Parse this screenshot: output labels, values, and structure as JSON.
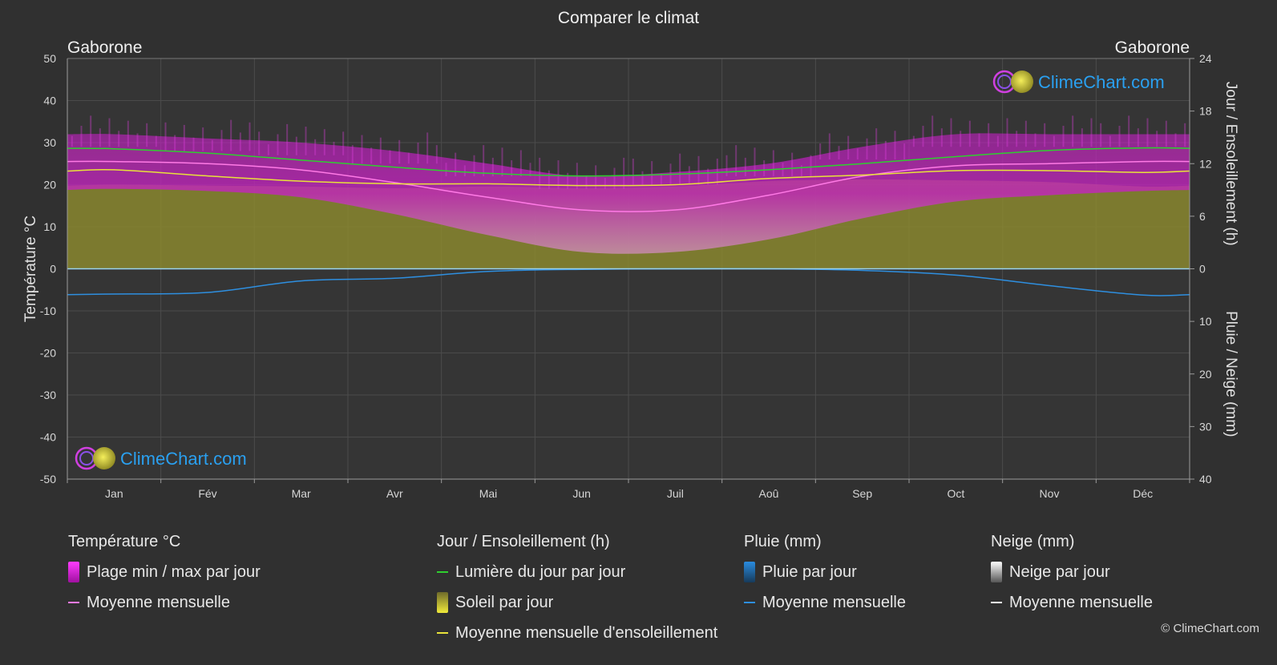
{
  "header": {
    "title": "Comparer le climat",
    "city_left": "Gaborone",
    "city_right": "Gaborone"
  },
  "axes": {
    "left_label": "Température °C",
    "right_label_top": "Jour / Ensoleillement (h)",
    "right_label_bottom": "Pluie / Neige (mm)"
  },
  "branding": {
    "logo_text": "ClimeChart.com",
    "copyright": "© ClimeChart.com"
  },
  "legend": {
    "temperature": {
      "title": "Température °C",
      "items": [
        "Plage min / max par jour",
        "Moyenne mensuelle"
      ]
    },
    "sun": {
      "title": "Jour / Ensoleillement (h)",
      "items": [
        "Lumière du jour par jour",
        "Soleil par jour",
        "Moyenne mensuelle d'ensoleillement"
      ]
    },
    "rain": {
      "title": "Pluie (mm)",
      "items": [
        "Pluie par jour",
        "Moyenne mensuelle"
      ]
    },
    "snow": {
      "title": "Neige (mm)",
      "items": [
        "Neige par jour",
        "Moyenne mensuelle"
      ]
    }
  },
  "colors": {
    "background": "#303030",
    "temp_range": "#c81ec8",
    "temp_mean": "#ff7ae6",
    "daylight": "#2fcf2f",
    "sunshine_fill": "#8c8c2e",
    "sunshine_mean": "#e8e23a",
    "rain": "#1e82d2",
    "rain_mean": "#2e8fe0",
    "snow": "#ffffff",
    "zero_line": "#9ad4f0",
    "logo_text": "#2aa0f0"
  },
  "chart_data": {
    "type": "line",
    "categories": [
      "Jan",
      "Fév",
      "Mar",
      "Avr",
      "Mai",
      "Jun",
      "Juil",
      "Aoû",
      "Sep",
      "Oct",
      "Nov",
      "Déc"
    ],
    "left_axis": {
      "ylim": [
        -50,
        50
      ],
      "ticks": [
        50,
        40,
        30,
        20,
        10,
        0,
        -10,
        -20,
        -30,
        -40,
        -50
      ]
    },
    "right_axis_top": {
      "ylim": [
        0,
        24
      ],
      "ticks": [
        24,
        18,
        12,
        6,
        0
      ]
    },
    "right_axis_bottom": {
      "ylim": [
        0,
        40
      ],
      "ticks": [
        10,
        20,
        30,
        40
      ]
    },
    "series": [
      {
        "name": "Moyenne mensuelle",
        "group": "temperature",
        "values": [
          25.5,
          25.0,
          23.5,
          20.5,
          17.0,
          14.0,
          14.0,
          17.5,
          22.0,
          24.5,
          25.0,
          25.5
        ]
      },
      {
        "name": "Plage min / max par jour (max)",
        "group": "temperature",
        "values": [
          32,
          31,
          30,
          28,
          25,
          22,
          23,
          25,
          29,
          32,
          32,
          32
        ]
      },
      {
        "name": "Plage min / max par jour (min)",
        "group": "temperature",
        "values": [
          19,
          18.5,
          17,
          13,
          8,
          4,
          4,
          7,
          12,
          16,
          17.5,
          18.5
        ]
      },
      {
        "name": "Lumière du jour par jour",
        "group": "sun",
        "values": [
          13.7,
          13.2,
          12.4,
          11.6,
          10.9,
          10.6,
          10.8,
          11.3,
          12.0,
          12.8,
          13.5,
          13.8
        ]
      },
      {
        "name": "Soleil par jour",
        "group": "sun",
        "values": [
          9.6,
          9.5,
          9.4,
          9.2,
          9.4,
          9.2,
          9.4,
          10.0,
          10.2,
          10.1,
          9.9,
          9.4
        ]
      },
      {
        "name": "Moyenne mensuelle d'ensoleillement",
        "group": "sun",
        "values": [
          11.3,
          10.6,
          10.0,
          9.7,
          9.7,
          9.5,
          9.6,
          10.3,
          10.7,
          11.2,
          11.2,
          11.0
        ]
      },
      {
        "name": "Moyenne mensuelle",
        "group": "rain",
        "values": [
          4.8,
          4.5,
          2.3,
          1.8,
          0.5,
          0.1,
          0.0,
          0.0,
          0.3,
          1.2,
          3.2,
          5.0
        ]
      },
      {
        "name": "Moyenne mensuelle",
        "group": "snow",
        "values": [
          0,
          0,
          0,
          0,
          0,
          0,
          0,
          0,
          0,
          0,
          0,
          0
        ]
      }
    ],
    "grid": true,
    "legend_position": "bottom"
  }
}
